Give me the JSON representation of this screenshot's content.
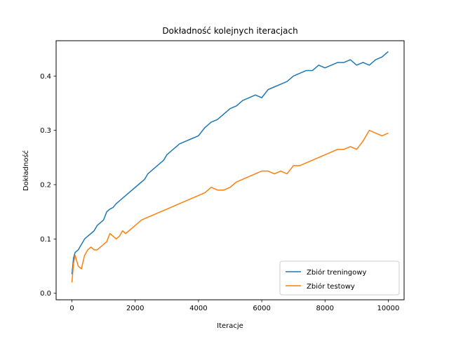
{
  "chart_data": {
    "type": "line",
    "title": "Dokładność kolejnych iteracjach",
    "xlabel": "Iteracje",
    "ylabel": "Dokładność",
    "xlim": [
      -500,
      10500
    ],
    "ylim": [
      -0.012,
      0.465
    ],
    "xticks": [
      0,
      2000,
      4000,
      6000,
      8000,
      10000
    ],
    "yticks": [
      0.0,
      0.1,
      0.2,
      0.3,
      0.4
    ],
    "grid": false,
    "legend_position": "lower-right",
    "series": [
      {
        "name": "Zbiór treningowy",
        "color": "#1f77b4",
        "x": [
          0,
          50,
          100,
          200,
          300,
          400,
          500,
          600,
          700,
          800,
          900,
          1000,
          1100,
          1200,
          1300,
          1400,
          1500,
          1600,
          1700,
          1800,
          1900,
          2000,
          2100,
          2200,
          2300,
          2400,
          2500,
          2600,
          2700,
          2800,
          2900,
          3000,
          3200,
          3400,
          3600,
          3800,
          4000,
          4200,
          4400,
          4600,
          4800,
          5000,
          5200,
          5400,
          5600,
          5800,
          6000,
          6200,
          6400,
          6600,
          6800,
          7000,
          7200,
          7400,
          7600,
          7800,
          8000,
          8200,
          8400,
          8600,
          8800,
          9000,
          9200,
          9400,
          9600,
          9800,
          10000
        ],
        "y": [
          0.035,
          0.065,
          0.075,
          0.08,
          0.09,
          0.1,
          0.105,
          0.11,
          0.115,
          0.125,
          0.13,
          0.135,
          0.15,
          0.155,
          0.158,
          0.165,
          0.17,
          0.175,
          0.18,
          0.185,
          0.19,
          0.195,
          0.2,
          0.205,
          0.21,
          0.22,
          0.225,
          0.23,
          0.235,
          0.24,
          0.245,
          0.255,
          0.265,
          0.275,
          0.28,
          0.285,
          0.29,
          0.305,
          0.315,
          0.32,
          0.33,
          0.34,
          0.345,
          0.355,
          0.36,
          0.365,
          0.36,
          0.375,
          0.38,
          0.385,
          0.39,
          0.4,
          0.405,
          0.41,
          0.41,
          0.42,
          0.415,
          0.42,
          0.425,
          0.425,
          0.43,
          0.42,
          0.425,
          0.42,
          0.43,
          0.435,
          0.445
        ]
      },
      {
        "name": "Zbiór testowy",
        "color": "#ff7f0e",
        "x": [
          0,
          50,
          100,
          150,
          200,
          300,
          400,
          500,
          600,
          700,
          800,
          900,
          1000,
          1100,
          1200,
          1300,
          1400,
          1500,
          1600,
          1700,
          1800,
          1900,
          2000,
          2200,
          2400,
          2600,
          2800,
          3000,
          3200,
          3400,
          3600,
          3800,
          4000,
          4200,
          4400,
          4600,
          4800,
          5000,
          5200,
          5400,
          5600,
          5800,
          6000,
          6200,
          6400,
          6600,
          6800,
          7000,
          7200,
          7400,
          7600,
          7800,
          8000,
          8200,
          8400,
          8600,
          8800,
          9000,
          9200,
          9400,
          9600,
          9800,
          10000
        ],
        "y": [
          0.02,
          0.055,
          0.07,
          0.06,
          0.05,
          0.045,
          0.07,
          0.08,
          0.085,
          0.08,
          0.08,
          0.085,
          0.09,
          0.095,
          0.11,
          0.105,
          0.1,
          0.105,
          0.115,
          0.11,
          0.115,
          0.12,
          0.125,
          0.135,
          0.14,
          0.145,
          0.15,
          0.155,
          0.16,
          0.165,
          0.17,
          0.175,
          0.18,
          0.185,
          0.195,
          0.19,
          0.19,
          0.195,
          0.205,
          0.21,
          0.215,
          0.22,
          0.225,
          0.225,
          0.22,
          0.225,
          0.22,
          0.235,
          0.235,
          0.24,
          0.245,
          0.25,
          0.255,
          0.26,
          0.265,
          0.265,
          0.27,
          0.265,
          0.28,
          0.3,
          0.295,
          0.29,
          0.295
        ]
      }
    ]
  }
}
